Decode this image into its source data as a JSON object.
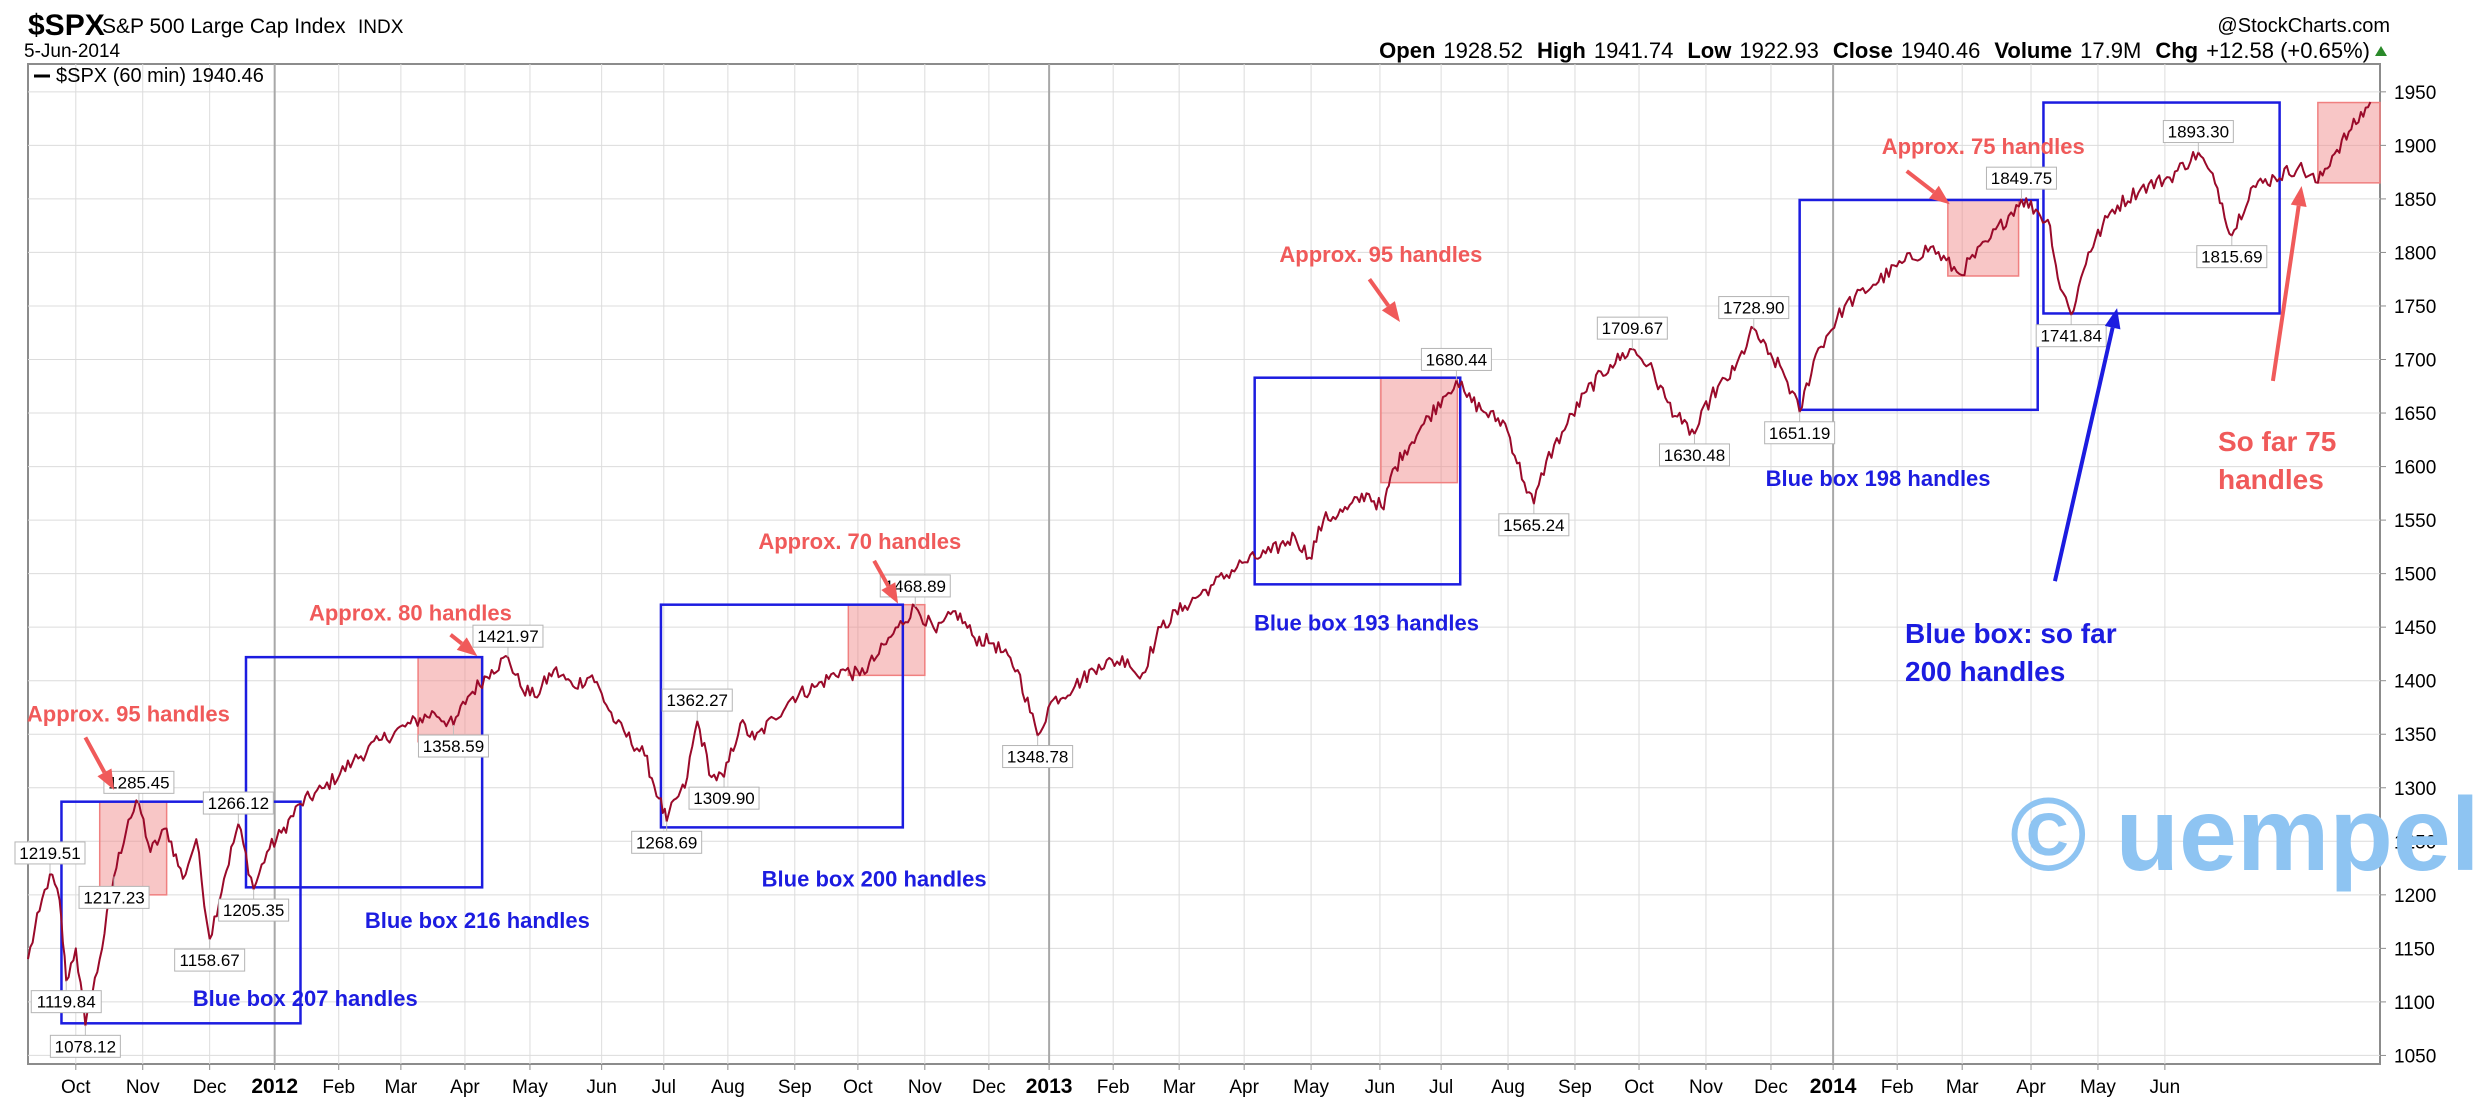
{
  "header": {
    "symbol": "$SPX",
    "name": "S&P 500 Large Cap Index",
    "exchange": "INDX",
    "date": "5-Jun-2014",
    "copyright": "@StockCharts.com",
    "open_label": "Open",
    "open_value": "1928.52",
    "high_label": "High",
    "high_value": "1941.74",
    "low_label": "Low",
    "low_value": "1922.93",
    "close_label": "Close",
    "close_value": "1940.46",
    "volume_label": "Volume",
    "volume_value": "17.9M",
    "chg_label": "Chg",
    "chg_value": "+12.58 (+0.65%)",
    "legend": "$SPX (60 min) 1940.46"
  },
  "colors": {
    "price_line": "#9a0a2a",
    "red_box_fill": "#f08080",
    "red_text": "#f05a5a",
    "blue_box": "#1c1ce0",
    "watermark": "#8ec4f2"
  },
  "chart_data": {
    "type": "line",
    "series": [
      {
        "name": "$SPX (60 min)",
        "points": [
          [
            0,
            1140
          ],
          [
            1.2,
            1185
          ],
          [
            2.3,
            1219.51
          ],
          [
            3.3,
            1195
          ],
          [
            4,
            1119.84
          ],
          [
            5,
            1150
          ],
          [
            6,
            1078.12
          ],
          [
            7.5,
            1140
          ],
          [
            9,
            1217.23
          ],
          [
            10.5,
            1270
          ],
          [
            11.6,
            1285.45
          ],
          [
            12.8,
            1240
          ],
          [
            14.5,
            1262
          ],
          [
            16.2,
            1215
          ],
          [
            17.6,
            1252
          ],
          [
            19,
            1158.67
          ],
          [
            20.5,
            1215
          ],
          [
            22,
            1266.12
          ],
          [
            23.6,
            1205.35
          ],
          [
            25,
            1240
          ],
          [
            26.5,
            1258
          ],
          [
            28.5,
            1285
          ],
          [
            31,
            1300
          ],
          [
            34,
            1325
          ],
          [
            37,
            1345
          ],
          [
            40,
            1360
          ],
          [
            42.5,
            1370
          ],
          [
            44.5,
            1358.59
          ],
          [
            46,
            1385
          ],
          [
            48.5,
            1410
          ],
          [
            50.2,
            1421.97
          ],
          [
            51.5,
            1395
          ],
          [
            53,
            1385
          ],
          [
            55,
            1410
          ],
          [
            57,
            1395
          ],
          [
            59,
            1405
          ],
          [
            61.5,
            1360
          ],
          [
            64.5,
            1330
          ],
          [
            66,
            1290
          ],
          [
            66.8,
            1268.69
          ],
          [
            67.8,
            1290
          ],
          [
            68.7,
            1300
          ],
          [
            70,
            1362.27
          ],
          [
            71.5,
            1310
          ],
          [
            72.8,
            1309.9
          ],
          [
            74.5,
            1360
          ],
          [
            76,
            1345
          ],
          [
            78,
            1365
          ],
          [
            80,
            1385
          ],
          [
            82.5,
            1395
          ],
          [
            85,
            1410
          ],
          [
            87,
            1405
          ],
          [
            89,
            1425
          ],
          [
            91,
            1450
          ],
          [
            92.8,
            1468.89
          ],
          [
            95,
            1445
          ],
          [
            97,
            1465
          ],
          [
            99,
            1440
          ],
          [
            101,
            1435
          ],
          [
            103.5,
            1410
          ],
          [
            105.6,
            1348.78
          ],
          [
            107,
            1380
          ],
          [
            109.5,
            1395
          ],
          [
            112,
            1415
          ],
          [
            115,
            1420
          ],
          [
            116.3,
            1402
          ],
          [
            118.5,
            1450
          ],
          [
            121,
            1470
          ],
          [
            124,
            1490
          ],
          [
            127,
            1510
          ],
          [
            130,
            1520
          ],
          [
            132.5,
            1535
          ],
          [
            134,
            1515
          ],
          [
            135.5,
            1550
          ],
          [
            138,
            1560
          ],
          [
            140,
            1575
          ],
          [
            141.8,
            1560
          ],
          [
            142.5,
            1590
          ],
          [
            144,
            1615
          ],
          [
            146,
            1640
          ],
          [
            148,
            1665
          ],
          [
            149.4,
            1680.44
          ],
          [
            150.5,
            1665
          ],
          [
            152.5,
            1650
          ],
          [
            154.5,
            1640
          ],
          [
            156.5,
            1585
          ],
          [
            157.5,
            1565.24
          ],
          [
            158.8,
            1605
          ],
          [
            161,
            1640
          ],
          [
            163,
            1670
          ],
          [
            165.5,
            1695
          ],
          [
            167.8,
            1709.67
          ],
          [
            169.5,
            1695
          ],
          [
            171.5,
            1660
          ],
          [
            173,
            1640
          ],
          [
            174.3,
            1630.48
          ],
          [
            176,
            1665
          ],
          [
            178.5,
            1690
          ],
          [
            180.5,
            1728.9
          ],
          [
            182,
            1705
          ],
          [
            183.5,
            1690
          ],
          [
            185.3,
            1651.19
          ],
          [
            187,
            1705
          ],
          [
            190,
            1750
          ],
          [
            193,
            1770
          ],
          [
            196,
            1790
          ],
          [
            199,
            1805
          ],
          [
            202,
            1780
          ],
          [
            205,
            1810
          ],
          [
            208.5,
            1849.75
          ],
          [
            210,
            1840
          ],
          [
            211.5,
            1825
          ],
          [
            212.3,
            1776
          ],
          [
            213.7,
            1741.84
          ],
          [
            215.5,
            1800
          ],
          [
            218,
            1840
          ],
          [
            221,
            1860
          ],
          [
            224,
            1870
          ],
          [
            227,
            1893.3
          ],
          [
            229,
            1860
          ],
          [
            230.5,
            1815.69
          ],
          [
            232.5,
            1860
          ],
          [
            235,
            1870
          ],
          [
            237.5,
            1880
          ],
          [
            239.5,
            1865
          ],
          [
            241,
            1890
          ],
          [
            243,
            1915
          ],
          [
            245,
            1940.46
          ]
        ]
      }
    ],
    "x_axis": {
      "type": "date",
      "labels": [
        {
          "t": 5,
          "text": "Oct",
          "bold": false
        },
        {
          "t": 12,
          "text": "Nov",
          "bold": false
        },
        {
          "t": 19,
          "text": "Dec",
          "bold": false
        },
        {
          "t": 25.8,
          "text": "2012",
          "bold": true
        },
        {
          "t": 32.5,
          "text": "Feb",
          "bold": false
        },
        {
          "t": 39,
          "text": "Mar",
          "bold": false
        },
        {
          "t": 45.7,
          "text": "Apr",
          "bold": false
        },
        {
          "t": 52.5,
          "text": "May",
          "bold": false
        },
        {
          "t": 60,
          "text": "Jun",
          "bold": false
        },
        {
          "t": 66.5,
          "text": "Jul",
          "bold": false
        },
        {
          "t": 73.2,
          "text": "Aug",
          "bold": false
        },
        {
          "t": 80.2,
          "text": "Sep",
          "bold": false
        },
        {
          "t": 86.8,
          "text": "Oct",
          "bold": false
        },
        {
          "t": 93.8,
          "text": "Nov",
          "bold": false
        },
        {
          "t": 100.5,
          "text": "Dec",
          "bold": false
        },
        {
          "t": 106.8,
          "text": "2013",
          "bold": true
        },
        {
          "t": 113.5,
          "text": "Feb",
          "bold": false
        },
        {
          "t": 120.4,
          "text": "Mar",
          "bold": false
        },
        {
          "t": 127.2,
          "text": "Apr",
          "bold": false
        },
        {
          "t": 134.2,
          "text": "May",
          "bold": false
        },
        {
          "t": 141.4,
          "text": "Jun",
          "bold": false
        },
        {
          "t": 147.8,
          "text": "Jul",
          "bold": false
        },
        {
          "t": 154.8,
          "text": "Aug",
          "bold": false
        },
        {
          "t": 161.8,
          "text": "Sep",
          "bold": false
        },
        {
          "t": 168.5,
          "text": "Oct",
          "bold": false
        },
        {
          "t": 175.5,
          "text": "Nov",
          "bold": false
        },
        {
          "t": 182.3,
          "text": "Dec",
          "bold": false
        },
        {
          "t": 188.8,
          "text": "2014",
          "bold": true
        },
        {
          "t": 195.5,
          "text": "Feb",
          "bold": false
        },
        {
          "t": 202.3,
          "text": "Mar",
          "bold": false
        },
        {
          "t": 209.5,
          "text": "Apr",
          "bold": false
        },
        {
          "t": 216.5,
          "text": "May",
          "bold": false
        },
        {
          "t": 223.5,
          "text": "Jun",
          "bold": false
        }
      ],
      "range": [
        0,
        246
      ]
    },
    "y_axis": {
      "ticks": [
        1050,
        1100,
        1150,
        1200,
        1250,
        1300,
        1350,
        1400,
        1450,
        1500,
        1550,
        1600,
        1650,
        1700,
        1750,
        1800,
        1850,
        1900,
        1950
      ],
      "range": [
        1042,
        1976
      ],
      "position": "right"
    },
    "grid": true,
    "legend": "top-left",
    "value_labels": [
      {
        "t": 2.3,
        "v": 1219.51,
        "text": "1219.51",
        "side": "above"
      },
      {
        "t": 4,
        "v": 1119.84,
        "text": "1119.84",
        "side": "below"
      },
      {
        "t": 6,
        "v": 1078.12,
        "text": "1078.12",
        "side": "below"
      },
      {
        "t": 9,
        "v": 1217.23,
        "text": "1217.23",
        "side": "below"
      },
      {
        "t": 11.6,
        "v": 1285.45,
        "text": "1285.45",
        "side": "above"
      },
      {
        "t": 19,
        "v": 1158.67,
        "text": "1158.67",
        "side": "below"
      },
      {
        "t": 22,
        "v": 1266.12,
        "text": "1266.12",
        "side": "above"
      },
      {
        "t": 23.6,
        "v": 1205.35,
        "text": "1205.35",
        "side": "below"
      },
      {
        "t": 44.5,
        "v": 1358.59,
        "text": "1358.59",
        "side": "below"
      },
      {
        "t": 50.2,
        "v": 1421.97,
        "text": "1421.97",
        "side": "above"
      },
      {
        "t": 66.8,
        "v": 1268.69,
        "text": "1268.69",
        "side": "below"
      },
      {
        "t": 70,
        "v": 1362.27,
        "text": "1362.27",
        "side": "above"
      },
      {
        "t": 72.8,
        "v": 1309.9,
        "text": "1309.90",
        "side": "below"
      },
      {
        "t": 92.8,
        "v": 1468.89,
        "text": "1468.89",
        "side": "above"
      },
      {
        "t": 105.6,
        "v": 1348.78,
        "text": "1348.78",
        "side": "below"
      },
      {
        "t": 149.4,
        "v": 1680.44,
        "text": "1680.44",
        "side": "above"
      },
      {
        "t": 157.5,
        "v": 1565.24,
        "text": "1565.24",
        "side": "below"
      },
      {
        "t": 167.8,
        "v": 1709.67,
        "text": "1709.67",
        "side": "above"
      },
      {
        "t": 174.3,
        "v": 1630.48,
        "text": "1630.48",
        "side": "below"
      },
      {
        "t": 180.5,
        "v": 1728.9,
        "text": "1728.90",
        "side": "above"
      },
      {
        "t": 185.3,
        "v": 1651.19,
        "text": "1651.19",
        "side": "below"
      },
      {
        "t": 208.5,
        "v": 1849.75,
        "text": "1849.75",
        "side": "above"
      },
      {
        "t": 213.7,
        "v": 1741.84,
        "text": "1741.84",
        "side": "below"
      },
      {
        "t": 227,
        "v": 1893.3,
        "text": "1893.30",
        "side": "above"
      },
      {
        "t": 230.5,
        "v": 1815.69,
        "text": "1815.69",
        "side": "below"
      }
    ],
    "blue_boxes": [
      {
        "t0": 3.5,
        "t1": 28.5,
        "v0": 1080,
        "v1": 1287
      },
      {
        "t0": 22.8,
        "t1": 47.5,
        "v0": 1207,
        "v1": 1422
      },
      {
        "t0": 66.2,
        "t1": 91.5,
        "v0": 1263,
        "v1": 1471
      },
      {
        "t0": 128.3,
        "t1": 149.8,
        "v0": 1490,
        "v1": 1683
      },
      {
        "t0": 185.3,
        "t1": 210.2,
        "v0": 1653,
        "v1": 1849
      },
      {
        "t0": 210.8,
        "t1": 235.5,
        "v0": 1743,
        "v1": 1940
      }
    ],
    "red_boxes": [
      {
        "t0": 7.5,
        "t1": 14.5,
        "v0": 1200,
        "v1": 1287
      },
      {
        "t0": 40.8,
        "t1": 47.5,
        "v0": 1343,
        "v1": 1422
      },
      {
        "t0": 85.8,
        "t1": 93.8,
        "v0": 1405,
        "v1": 1471
      },
      {
        "t0": 141.5,
        "t1": 149.5,
        "v0": 1585,
        "v1": 1683
      },
      {
        "t0": 200.8,
        "t1": 208.2,
        "v0": 1778,
        "v1": 1849
      },
      {
        "t0": 239.5,
        "t1": 246,
        "v0": 1865,
        "v1": 1940
      }
    ],
    "annotations": [
      {
        "id": "red1",
        "text": "Approx. 95 handles",
        "color": "red",
        "t": 10.5,
        "v": 1362
      },
      {
        "id": "red2",
        "text": "Approx. 80 handles",
        "color": "red",
        "t": 40,
        "v": 1456
      },
      {
        "id": "red3",
        "text": "Approx. 70 handles",
        "color": "red",
        "t": 87,
        "v": 1523
      },
      {
        "id": "red4",
        "text": "Approx. 95 handles",
        "color": "red",
        "t": 141.5,
        "v": 1791
      },
      {
        "id": "red5",
        "text": "Approx. 75 handles",
        "color": "red",
        "t": 204.5,
        "v": 1892
      },
      {
        "id": "blue1",
        "text": "Blue box 207 handles",
        "color": "blue",
        "t": 29,
        "v": 1096
      },
      {
        "id": "blue2",
        "text": "Blue box 216 handles",
        "color": "blue",
        "t": 47,
        "v": 1169
      },
      {
        "id": "blue3",
        "text": "Blue box 200 handles",
        "color": "blue",
        "t": 88.5,
        "v": 1208
      },
      {
        "id": "blue4",
        "text": "Blue box 193 handles",
        "color": "blue",
        "t": 140,
        "v": 1447
      },
      {
        "id": "blue5",
        "text": "Blue box 198 handles",
        "color": "blue",
        "t": 193.5,
        "v": 1582
      }
    ],
    "big_annotations": {
      "blue_lines": [
        "Blue box: so far",
        "200 handles"
      ],
      "red_lines": [
        "So far 75",
        "handles"
      ]
    },
    "arrows": [
      {
        "color": "red",
        "t0": 6,
        "v0": 1347,
        "t1": 9,
        "v1": 1298
      },
      {
        "color": "red",
        "t0": 44.2,
        "v0": 1443,
        "t1": 47,
        "v1": 1423
      },
      {
        "color": "red",
        "t0": 88.5,
        "v0": 1512,
        "t1": 91,
        "v1": 1472
      },
      {
        "color": "red",
        "t0": 140.3,
        "v0": 1775,
        "t1": 143.5,
        "v1": 1735
      },
      {
        "color": "red",
        "t0": 196.5,
        "v0": 1876,
        "t1": 201,
        "v1": 1845
      },
      {
        "color": "red",
        "t0": 234.8,
        "v0": 1680,
        "t1": 237.8,
        "v1": 1862
      },
      {
        "color": "blue",
        "t0": 212,
        "v0": 1493,
        "t1": 218.5,
        "v1": 1748
      }
    ],
    "watermark": "© uempel"
  }
}
